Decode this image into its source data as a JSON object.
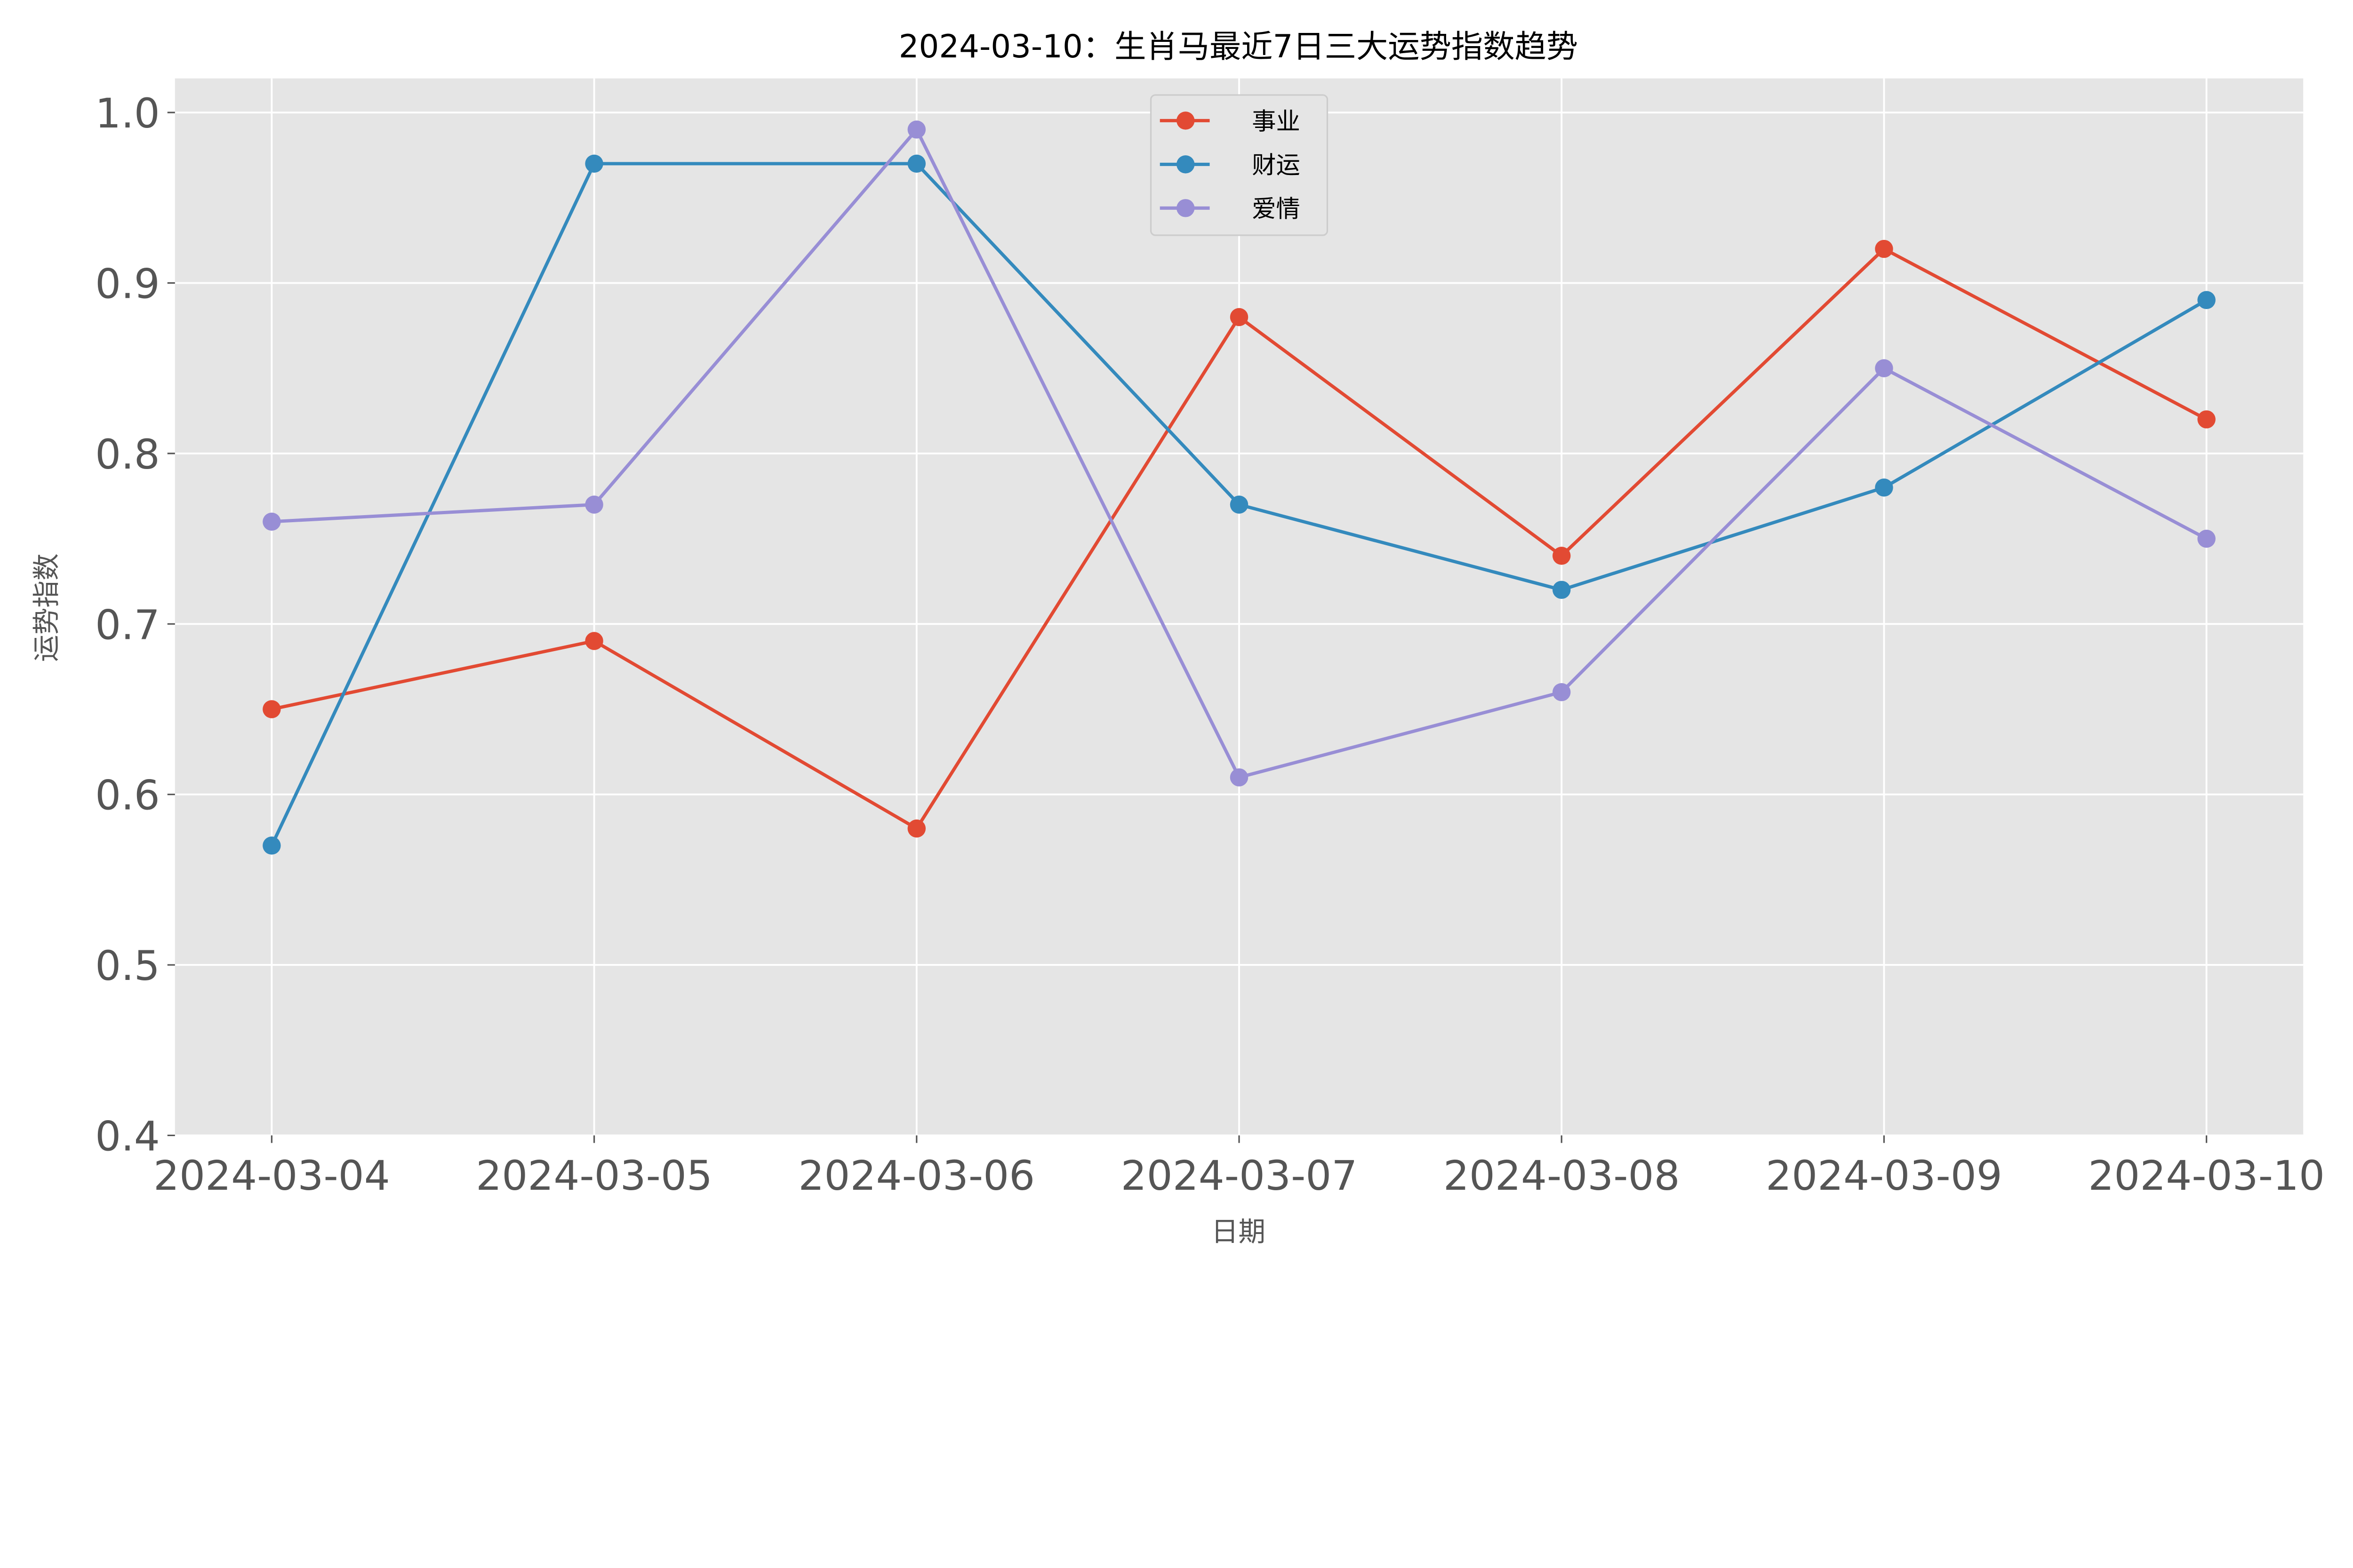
{
  "chart_data": {
    "type": "line",
    "title": "2024-03-10：生肖马最近7日三大运势指数趋势",
    "xlabel": "日期",
    "ylabel": "运势指数",
    "categories": [
      "2024-03-04",
      "2024-03-05",
      "2024-03-06",
      "2024-03-07",
      "2024-03-08",
      "2024-03-09",
      "2024-03-10"
    ],
    "ylim": [
      0.4,
      1.02
    ],
    "yticks": [
      "0.4",
      "0.5",
      "0.6",
      "0.7",
      "0.8",
      "0.9",
      "1.0"
    ],
    "grid": true,
    "legend_position": "top-center",
    "series": [
      {
        "name": "事业",
        "color": "#E24A33",
        "values": [
          0.65,
          0.69,
          0.58,
          0.88,
          0.74,
          0.92,
          0.82
        ]
      },
      {
        "name": "财运",
        "color": "#348ABD",
        "values": [
          0.57,
          0.97,
          0.97,
          0.77,
          0.72,
          0.78,
          0.89
        ]
      },
      {
        "name": "爱情",
        "color": "#988ED5",
        "values": [
          0.76,
          0.77,
          0.99,
          0.61,
          0.66,
          0.85,
          0.75
        ]
      }
    ]
  }
}
